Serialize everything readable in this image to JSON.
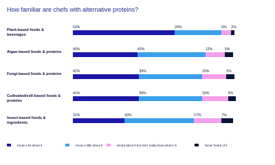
{
  "chart_data": {
    "type": "stacked-bar-horizontal",
    "title": "How familiar are chefs with alternative proteins?",
    "categories": [
      "Plant-based foods & beverages",
      "Algae-based foods & proteins",
      "Fungi-based foods & proteins",
      "Cultivated/cell-based foods & proteins",
      "Insect-based foods & ingredients"
    ],
    "xlim": [
      0,
      100
    ],
    "series": [
      {
        "name": "Know a lot about it",
        "color": "#1d17a8",
        "values": [
          63,
          40,
          41,
          41,
          32
        ],
        "value_labels": [
          "63%",
          "40%",
          "41%",
          "41%",
          "32%"
        ]
      },
      {
        "name": "Know a little about it",
        "color": "#3aa0ea",
        "values": [
          29,
          42,
          39,
          39,
          43
        ],
        "value_labels": [
          "29%",
          "42%",
          "39%",
          "39%",
          "43%"
        ]
      },
      {
        "name": "Heard about it but don't really know what it is",
        "color": "#f5a0ea",
        "values": [
          6,
          12,
          15,
          16,
          17
        ],
        "value_labels": [
          "6%",
          "12%",
          "15%",
          "16%",
          "17%"
        ]
      },
      {
        "name": "Never heard of it",
        "color": "#0b1238",
        "values": [
          2,
          5,
          5,
          5,
          7
        ],
        "value_labels": [
          "2%",
          "5%",
          "5%",
          "5%",
          "7%"
        ]
      }
    ]
  }
}
